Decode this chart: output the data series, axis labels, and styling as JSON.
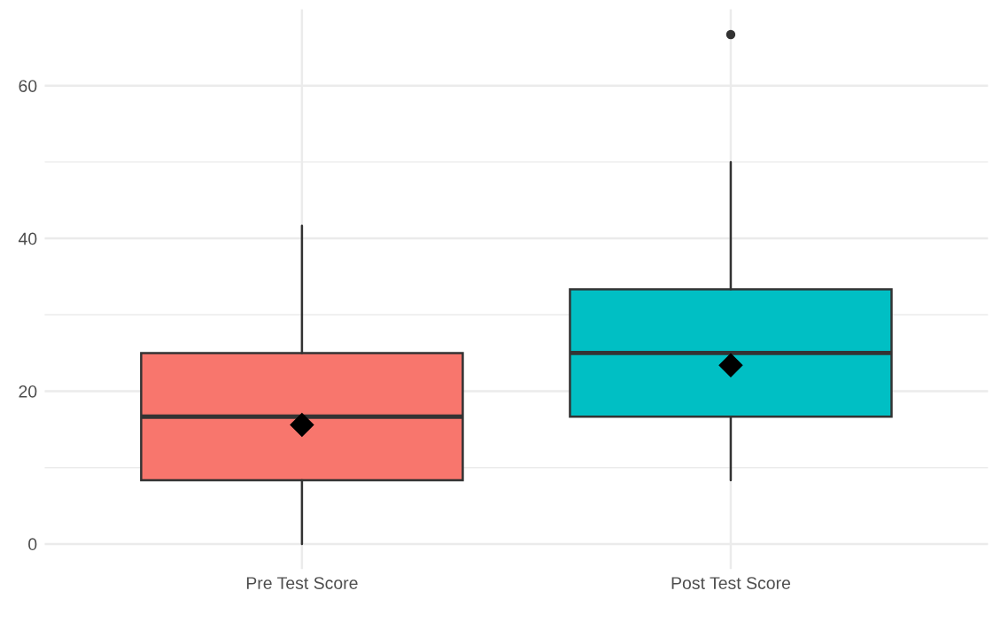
{
  "chart_data": {
    "type": "box",
    "categories": [
      "Pre Test Score",
      "Post Test Score"
    ],
    "colors": [
      "#f8766d",
      "#00bfc4"
    ],
    "boxes": [
      {
        "low": 0,
        "q1": 8.33,
        "median": 16.67,
        "q3": 25,
        "high": 41.67,
        "mean": 15.6
      },
      {
        "low": 8.33,
        "q1": 16.67,
        "median": 25,
        "q3": 33.33,
        "high": 50,
        "mean": 23.4,
        "outliers": [
          66.7
        ]
      }
    ],
    "ylim": [
      -3.3,
      70
    ],
    "yticks": [
      0,
      {
        "value": 10,
        "label": null
      },
      20,
      {
        "value": 30,
        "label": null
      },
      40,
      {
        "value": 50,
        "label": null
      },
      60
    ],
    "grid": true,
    "marker": "diamond"
  }
}
